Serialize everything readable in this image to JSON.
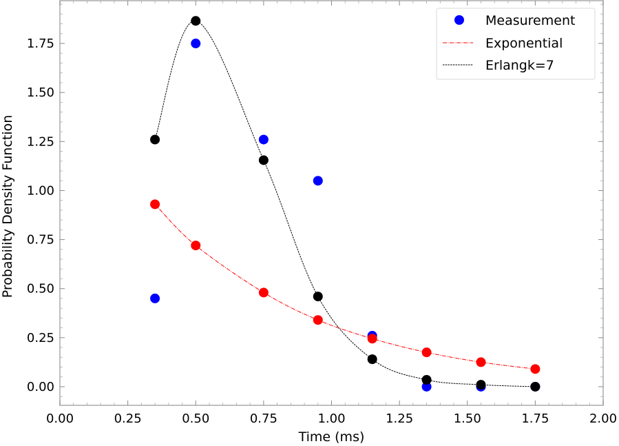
{
  "chart_data": {
    "type": "scatter",
    "title": "",
    "xlabel": "Time (ms)",
    "ylabel": "Probability Density Function",
    "xlim": [
      0.0,
      2.0
    ],
    "ylim": [
      -0.095,
      1.968
    ],
    "grid": false,
    "x_ticks": [
      0.0,
      0.25,
      0.5,
      0.75,
      1.0,
      1.25,
      1.5,
      1.75,
      2.0
    ],
    "x_tick_labels": [
      "0.00",
      "0.25",
      "0.50",
      "0.75",
      "1.00",
      "1.25",
      "1.50",
      "1.75",
      "2.00"
    ],
    "y_ticks": [
      0.0,
      0.25,
      0.5,
      0.75,
      1.0,
      1.25,
      1.5,
      1.75
    ],
    "y_tick_labels": [
      "0.00",
      "0.25",
      "0.50",
      "0.75",
      "1.00",
      "1.25",
      "1.50",
      "1.75"
    ],
    "legend_position": "top-right",
    "x": [
      0.35,
      0.5,
      0.75,
      0.95,
      1.15,
      1.35,
      1.55,
      1.75
    ],
    "series": [
      {
        "name": "Measurement",
        "kind": "points",
        "color": "#0000ff",
        "values": [
          0.45,
          1.75,
          1.26,
          1.05,
          0.26,
          0.0,
          0.0,
          0.0
        ]
      },
      {
        "name": "Exponential",
        "kind": "points+curve",
        "color": "#ff0000",
        "line_style": "dashdot",
        "values": [
          0.93,
          0.72,
          0.48,
          0.34,
          0.245,
          0.175,
          0.125,
          0.09
        ],
        "curve": {
          "function": "exponential",
          "lambda": 1.62,
          "scale": 1.64
        }
      },
      {
        "name": "Erlangk=7",
        "kind": "points+curve",
        "color": "#000000",
        "line_style": "dashed",
        "values": [
          1.26,
          1.865,
          1.155,
          0.46,
          0.14,
          0.035,
          0.01,
          0.0
        ],
        "curve": {
          "function": "erlang",
          "k": 7,
          "lambda": 12.5
        }
      }
    ]
  }
}
